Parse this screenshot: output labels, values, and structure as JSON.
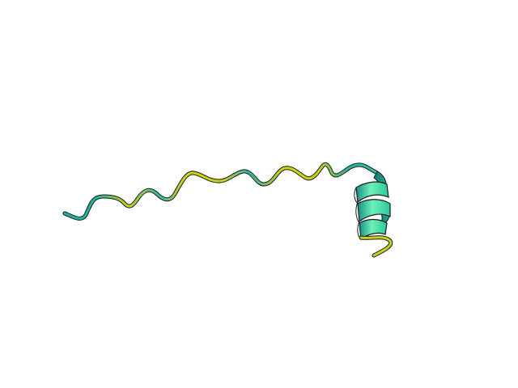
{
  "scene": {
    "subject": "protein-ribbon-structure",
    "background_color": "#ffffff"
  },
  "colors": {
    "coil_primary": "#d4d40f",
    "coil_secondary": "#1fb3a0",
    "helix_light": "#6cf0b8",
    "helix_mid": "#3fd9a0",
    "helix_dark": "#1a8f86",
    "outline": "#1b1b1b"
  }
}
